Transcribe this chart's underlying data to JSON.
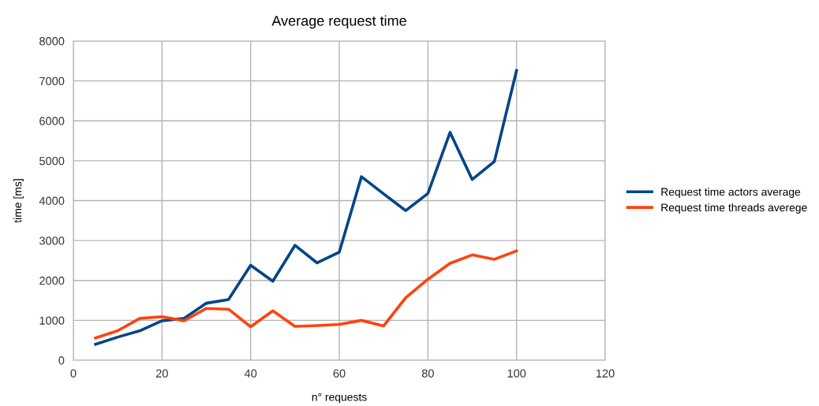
{
  "chart_data": {
    "type": "line",
    "title": "Average request time",
    "xlabel": "n° requests",
    "ylabel": "time [ms]",
    "x": [
      5,
      10,
      15,
      20,
      25,
      30,
      35,
      40,
      45,
      50,
      55,
      60,
      65,
      70,
      75,
      80,
      85,
      90,
      95,
      100
    ],
    "series": [
      {
        "name": "Request time actors average",
        "color": "#004586",
        "values": [
          400,
          580,
          740,
          990,
          1050,
          1430,
          1520,
          2380,
          1980,
          2880,
          2440,
          2710,
          4600,
          4170,
          3750,
          4180,
          5710,
          4530,
          4980,
          7260
        ]
      },
      {
        "name": "Request time threads averege",
        "color": "#ff420e",
        "values": [
          560,
          740,
          1050,
          1090,
          990,
          1300,
          1280,
          840,
          1240,
          850,
          870,
          900,
          1000,
          860,
          1570,
          2030,
          2430,
          2640,
          2530,
          2740
        ]
      }
    ],
    "xlim": [
      0,
      120
    ],
    "xticks": [
      0,
      20,
      40,
      60,
      80,
      100,
      120
    ],
    "ylim": [
      0,
      8000
    ],
    "yticks": [
      0,
      1000,
      2000,
      3000,
      4000,
      5000,
      6000,
      7000,
      8000
    ],
    "grid": true,
    "legend": "right",
    "marker": "none",
    "line_style": "solid"
  }
}
